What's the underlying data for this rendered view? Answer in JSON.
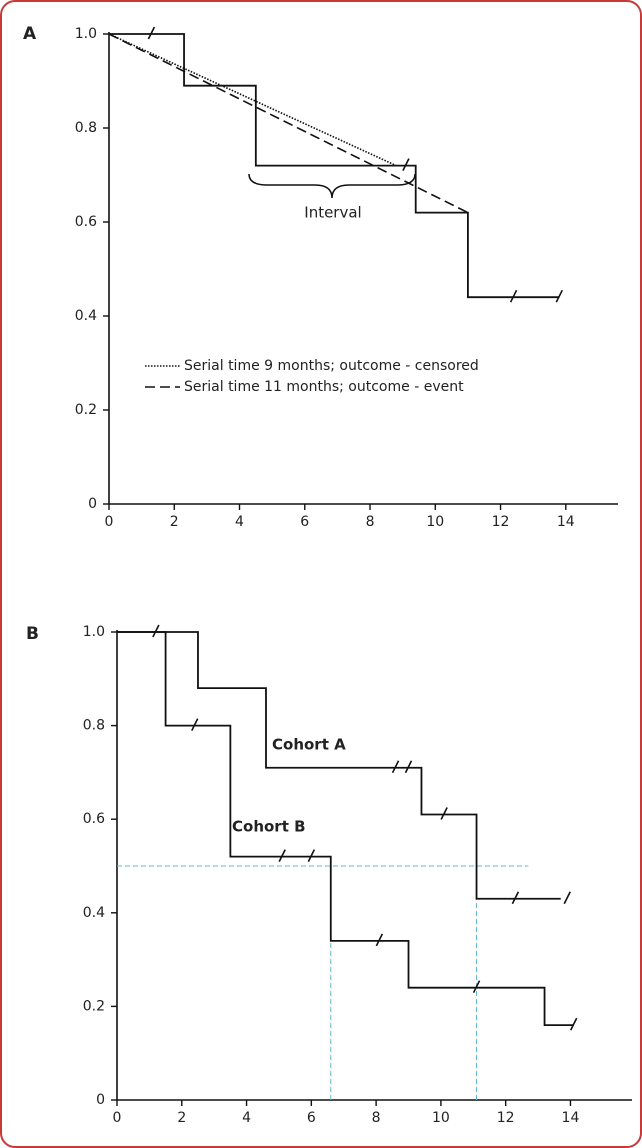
{
  "chart_data": [
    {
      "type": "line",
      "panel": "A",
      "legend": true,
      "annotation": "Interval",
      "xlim": [
        0,
        15.6
      ],
      "ylim": [
        0,
        1
      ],
      "xticks": [
        0,
        2,
        4,
        6,
        8,
        10,
        12,
        14
      ],
      "yticks": [
        0,
        0.2,
        0.4,
        0.6,
        0.8,
        {
          "value": 1,
          "label": "1.0"
        }
      ],
      "series": [
        {
          "color": "#111111",
          "style": "solid",
          "x": [
            0,
            2.3,
            2.3,
            4.5,
            4.5,
            9.4,
            9.4,
            11,
            11,
            13.8
          ],
          "values": [
            1,
            1,
            0.89,
            0.89,
            0.72,
            0.72,
            0.62,
            0.62,
            0.44,
            0.44
          ],
          "censored": {
            "x": [
              1.3,
              9.1,
              12.4,
              13.8
            ],
            "values": [
              1,
              0.72,
              0.44,
              0.44
            ]
          }
        },
        {
          "name": "Serial time 9 months; outcome - censored",
          "color": "#111111",
          "style": "dotted",
          "x": [
            0,
            8.8
          ],
          "values": [
            1,
            0.72
          ]
        },
        {
          "name": "Serial time 11 months; outcome - event",
          "color": "#111111",
          "style": "dashed",
          "x": [
            0,
            11
          ],
          "values": [
            1,
            0.62
          ]
        }
      ]
    },
    {
      "type": "line",
      "panel": "B",
      "legend": false,
      "xlim": [
        0,
        15.9
      ],
      "ylim": [
        0,
        1
      ],
      "xticks": [
        0,
        2,
        4,
        6,
        8,
        10,
        12,
        14
      ],
      "yticks": [
        0,
        0.2,
        0.4,
        0.6,
        0.8,
        {
          "value": 1,
          "label": "1.0"
        }
      ],
      "series": [
        {
          "name": "Cohort A",
          "color": "#111111",
          "style": "solid",
          "x": [
            0,
            2.5,
            2.5,
            4.6,
            4.6,
            9.4,
            9.4,
            11.1,
            11.1,
            13.7
          ],
          "values": [
            1,
            1,
            0.88,
            0.88,
            0.71,
            0.71,
            0.61,
            0.61,
            0.43,
            0.43
          ],
          "censored": {
            "x": [
              1.2,
              8.6,
              9.0,
              10.1,
              12.3,
              13.9
            ],
            "values": [
              1,
              0.71,
              0.71,
              0.61,
              0.43,
              0.43
            ]
          }
        },
        {
          "name": "Cohort B",
          "color": "#111111",
          "style": "solid",
          "x": [
            0,
            1.5,
            1.5,
            3.5,
            3.5,
            6.6,
            6.6,
            9,
            9,
            13.2,
            13.2,
            14.1
          ],
          "values": [
            1,
            1,
            0.8,
            0.8,
            0.52,
            0.52,
            0.34,
            0.34,
            0.24,
            0.24,
            0.16,
            0.16
          ],
          "censored": {
            "x": [
              2.4,
              5.1,
              6.0,
              8.1,
              11.1,
              14.1
            ],
            "values": [
              0.8,
              0.52,
              0.52,
              0.34,
              0.24,
              0.16
            ]
          }
        }
      ],
      "reference_lines": [
        {
          "color": "#5bb8d0",
          "x": [
            0,
            12.7
          ],
          "values": [
            0.5,
            0.5
          ]
        },
        {
          "color": "#5bb8d0",
          "x": [
            6.6,
            6.6
          ],
          "values": [
            0,
            0.5
          ]
        },
        {
          "color": "#5bb8d0",
          "x": [
            11.1,
            11.1
          ],
          "values": [
            0,
            0.5
          ]
        }
      ]
    }
  ]
}
